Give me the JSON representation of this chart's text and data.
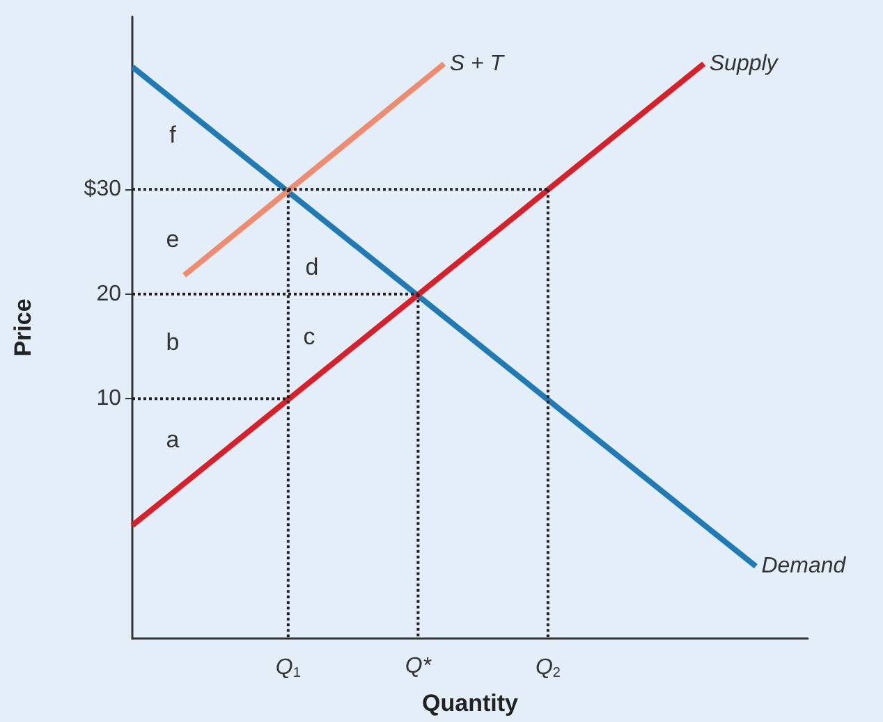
{
  "chart_data": {
    "type": "line",
    "xlabel": "Quantity",
    "ylabel": "Price",
    "ylim": [
      -12.9,
      46.5
    ],
    "categories": [
      null,
      null,
      null,
      null,
      null,
      null,
      "Q$_{1}$",
      null,
      null,
      null,
      null,
      "Q*",
      null,
      null,
      null,
      null,
      "Q$_{2}$",
      null,
      null,
      null,
      null,
      null,
      null,
      null,
      null,
      null,
      null
    ],
    "yticks": [
      10,
      20,
      {
        "value": 30,
        "label": "$30"
      }
    ],
    "grid": false,
    "legend": false,
    "marker": "none",
    "series": [
      {
        "name": "Demand",
        "color": "#1f7ab5",
        "values": [
          41.7,
          null,
          null,
          null,
          null,
          null,
          null,
          null,
          null,
          null,
          null,
          null,
          null,
          null,
          null,
          null,
          null,
          null,
          null,
          null,
          null,
          null,
          null,
          null,
          -6.0,
          null,
          null
        ]
      },
      {
        "name": "Supply",
        "color": "#d8202a",
        "values": [
          -2.1,
          null,
          null,
          null,
          null,
          null,
          null,
          null,
          null,
          null,
          null,
          null,
          null,
          null,
          null,
          null,
          null,
          null,
          null,
          null,
          null,
          null,
          42,
          null,
          null,
          null,
          null
        ]
      },
      {
        "name": "S + T",
        "color": "#ef8c70",
        "values": [
          null,
          null,
          21.8,
          null,
          null,
          null,
          null,
          null,
          null,
          null,
          null,
          null,
          42,
          null,
          null,
          null,
          null,
          null,
          null,
          null,
          null,
          null,
          null,
          null,
          null,
          null,
          null
        ]
      },
      {
        "color": "#222222",
        "line_style": "dotted",
        "values": [
          30,
          null,
          null,
          null,
          null,
          null,
          null,
          null,
          null,
          null,
          null,
          null,
          null,
          null,
          null,
          null,
          30,
          null,
          null,
          null,
          null,
          null,
          null,
          null,
          null,
          null,
          null
        ]
      },
      {
        "color": "#222222",
        "line_style": "dotted",
        "values": [
          20,
          null,
          null,
          null,
          null,
          null,
          null,
          null,
          null,
          null,
          null,
          20,
          null,
          null,
          null,
          null,
          null,
          null,
          null,
          null,
          null,
          null,
          null,
          null,
          null,
          null,
          null
        ]
      },
      {
        "color": "#222222",
        "line_style": "dotted",
        "values": [
          10,
          null,
          null,
          null,
          null,
          null,
          10,
          null,
          null,
          null,
          null,
          null,
          null,
          null,
          null,
          null,
          null,
          null,
          null,
          null,
          null,
          null,
          null,
          null,
          null,
          null,
          null
        ]
      },
      {
        "color": "#222222",
        "line_style": "dotted",
        "x": [
          "Q$_{1}$",
          "Q$_{1}$"
        ],
        "values": [
          30,
          -12.9
        ]
      },
      {
        "color": "#222222",
        "line_style": "dotted",
        "x": [
          "Q*",
          "Q*"
        ],
        "values": [
          20,
          -12.9
        ]
      },
      {
        "color": "#222222",
        "line_style": "dotted",
        "x": [
          "Q$_{2}$",
          "Q$_{2}$"
        ],
        "values": [
          30,
          -12.9
        ]
      }
    ],
    "annotations": [
      "f",
      "e",
      "d",
      "c",
      "b",
      "a"
    ]
  }
}
